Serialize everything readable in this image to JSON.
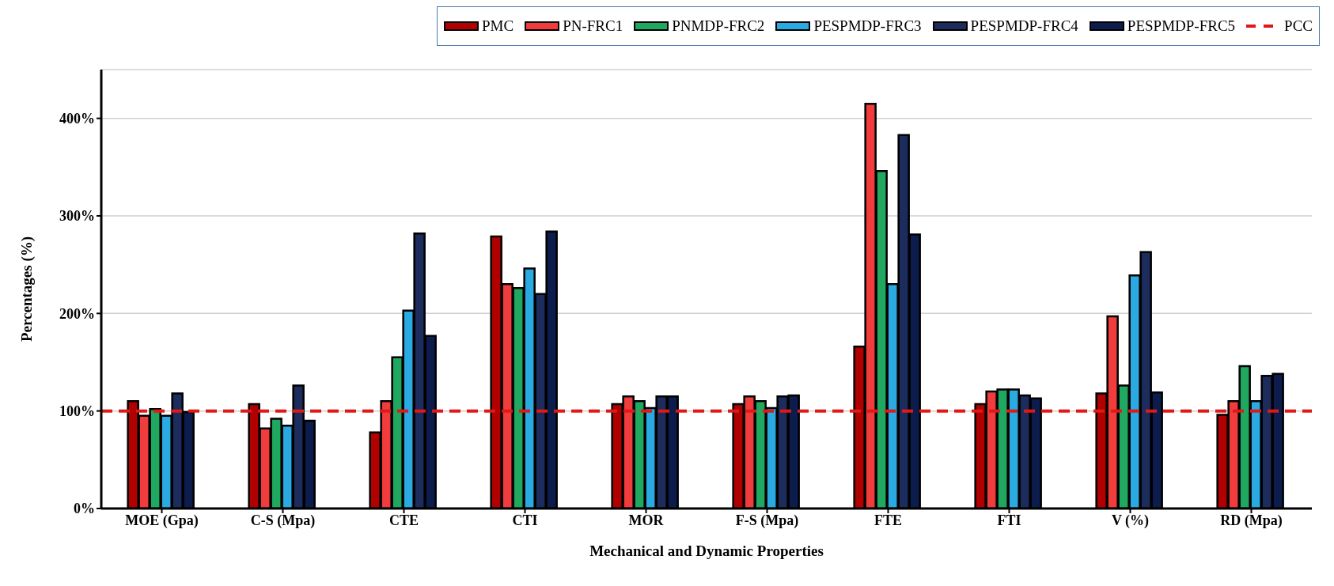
{
  "chart_data": {
    "type": "bar",
    "xlabel": "Mechanical and Dynamic Properties",
    "ylabel": "Percentages (%)",
    "categories": [
      "MOE (Gpa)",
      "C-S (Mpa)",
      "CTE",
      "CTI",
      "MOR",
      "F-S (Mpa)",
      "FTE",
      "FTI",
      "V (%)",
      "RD (Mpa)"
    ],
    "series": [
      {
        "name": "PMC",
        "color": "#b00000",
        "values": [
          110,
          107,
          78,
          279,
          107,
          107,
          166,
          107,
          118,
          96
        ]
      },
      {
        "name": "PN-FRC1",
        "color": "#f03c3c",
        "values": [
          95,
          82,
          110,
          230,
          115,
          115,
          415,
          120,
          197,
          110
        ]
      },
      {
        "name": "PNMDP-FRC2",
        "color": "#20a860",
        "values": [
          102,
          92,
          155,
          226,
          110,
          110,
          346,
          122,
          126,
          146
        ]
      },
      {
        "name": "PESPMDP-FRC3",
        "color": "#2aaae0",
        "values": [
          95,
          85,
          203,
          246,
          103,
          103,
          230,
          122,
          239,
          110
        ]
      },
      {
        "name": "PESPMDP-FRC4",
        "color": "#1c2c5c",
        "values": [
          118,
          126,
          282,
          220,
          115,
          115,
          383,
          116,
          263,
          136
        ]
      },
      {
        "name": "PESPMDP-FRC5",
        "color": "#0c1c4c",
        "values": [
          99,
          90,
          177,
          284,
          115,
          116,
          281,
          113,
          119,
          138
        ]
      }
    ],
    "ylim": [
      0,
      450
    ],
    "yticks": [
      {
        "value": 0,
        "label": "0%"
      },
      {
        "value": 100,
        "label": "100%"
      },
      {
        "value": 200,
        "label": "200%"
      },
      {
        "value": 300,
        "label": "300%"
      },
      {
        "value": 400,
        "label": "400%"
      }
    ],
    "ref_lines": [
      {
        "axis": "y",
        "value": 100,
        "label": "PCC",
        "color": "#e01818",
        "line_style": "dashed"
      }
    ],
    "grid": "y",
    "legend": "top"
  }
}
